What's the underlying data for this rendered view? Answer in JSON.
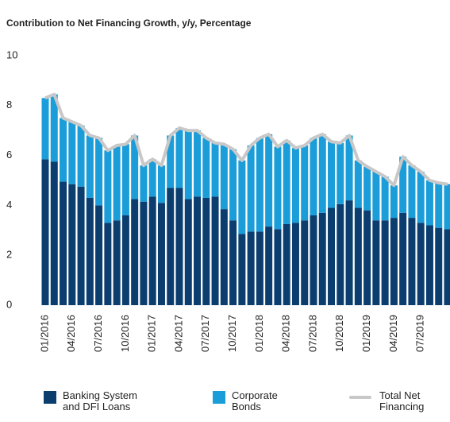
{
  "chart_data": {
    "type": "bar",
    "stacked": true,
    "title": "Contribution to Net Financing Growth, y/y, Percentage",
    "categories": [
      "01/2016",
      null,
      null,
      "04/2016",
      null,
      null,
      "07/2016",
      null,
      null,
      "10/2016",
      null,
      null,
      "01/2017",
      null,
      null,
      "04/2017",
      null,
      null,
      "07/2017",
      null,
      null,
      "10/2017",
      null,
      null,
      "01/2018",
      null,
      null,
      "04/2018",
      null,
      null,
      "07/2018",
      null,
      null,
      "10/2018",
      null,
      null,
      "01/2019",
      null,
      null,
      "04/2019",
      null,
      null,
      "07/2019",
      null,
      null,
      null
    ],
    "series": [
      {
        "name": "Banking System and DFI Loans",
        "color": "#0b3e6f",
        "values": [
          5.85,
          5.75,
          4.95,
          4.85,
          4.75,
          4.3,
          4.0,
          3.3,
          3.4,
          3.6,
          4.25,
          4.15,
          4.35,
          4.1,
          4.7,
          4.7,
          4.25,
          4.35,
          4.3,
          4.35,
          3.85,
          3.4,
          2.85,
          2.95,
          2.95,
          3.15,
          3.05,
          3.25,
          3.3,
          3.4,
          3.6,
          3.7,
          3.9,
          4.05,
          4.2,
          3.9,
          3.8,
          3.4,
          3.4,
          3.5,
          3.7,
          3.5,
          3.3,
          3.2,
          3.1,
          3.05
        ]
      },
      {
        "name": "Corporate Bonds",
        "color": "#1a9dd9",
        "values": [
          2.45,
          2.7,
          2.55,
          2.5,
          2.45,
          2.5,
          2.7,
          2.9,
          3.0,
          2.85,
          2.55,
          1.45,
          1.5,
          1.5,
          2.1,
          2.4,
          2.75,
          2.65,
          2.4,
          2.15,
          2.6,
          2.85,
          2.95,
          3.45,
          3.75,
          3.7,
          3.3,
          3.35,
          3.0,
          3.0,
          3.1,
          3.15,
          2.65,
          2.45,
          2.6,
          1.9,
          1.75,
          1.95,
          1.75,
          1.3,
          2.25,
          2.1,
          2.05,
          1.8,
          1.8,
          1.8
        ]
      },
      {
        "name": "Total Net Financing",
        "type": "line",
        "color": "#c8c8c8",
        "values": [
          8.3,
          8.45,
          7.5,
          7.35,
          7.2,
          6.8,
          6.7,
          6.2,
          6.4,
          6.45,
          6.8,
          5.6,
          5.85,
          5.6,
          6.8,
          7.1,
          7.0,
          7.0,
          6.7,
          6.5,
          6.45,
          6.25,
          5.8,
          6.4,
          6.7,
          6.85,
          6.35,
          6.6,
          6.3,
          6.4,
          6.7,
          6.85,
          6.55,
          6.5,
          6.8,
          5.8,
          5.55,
          5.35,
          5.15,
          4.8,
          5.95,
          5.6,
          5.35,
          5.0,
          4.9,
          4.85
        ]
      }
    ],
    "ylim": [
      0,
      10
    ],
    "yticks": [
      0,
      2,
      4,
      6,
      8,
      10
    ],
    "grid": false
  }
}
